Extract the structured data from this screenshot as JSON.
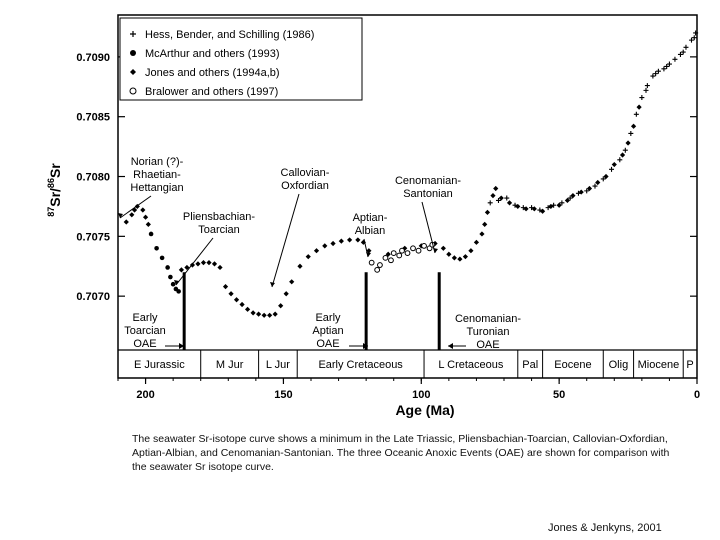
{
  "chart_data": {
    "type": "scatter",
    "title": "",
    "xlabel": "Age (Ma)",
    "ylabel_parts": {
      "exp1": "87",
      "sym1": "Sr/",
      "exp2": "86",
      "sym2": "Sr"
    },
    "xlim": [
      210,
      0
    ],
    "ylim": [
      0.70655,
      0.70935
    ],
    "x_ticks": [
      200,
      150,
      100,
      50,
      0
    ],
    "x_tick_labels": [
      "200",
      "150",
      "100",
      "50",
      "0"
    ],
    "y_ticks": [
      0.707,
      0.7075,
      0.708,
      0.7085,
      0.709
    ],
    "y_tick_labels": [
      "0.7070",
      "0.7075",
      "0.7080",
      "0.7085",
      "0.7090"
    ],
    "legend_position": "top-left",
    "series": [
      {
        "name": "Hess, Bender, and Schilling (1986)",
        "marker": "plus",
        "points": [
          [
            75,
            0.70778
          ],
          [
            72,
            0.7078
          ],
          [
            69,
            0.70782
          ],
          [
            66,
            0.70776
          ],
          [
            63,
            0.70774
          ],
          [
            60,
            0.70774
          ],
          [
            57,
            0.70772
          ],
          [
            54,
            0.70774
          ],
          [
            52,
            0.70776
          ],
          [
            49,
            0.70778
          ],
          [
            46,
            0.70782
          ],
          [
            43,
            0.70786
          ],
          [
            40,
            0.70788
          ],
          [
            37,
            0.70792
          ],
          [
            34,
            0.70798
          ],
          [
            31,
            0.70806
          ],
          [
            28,
            0.70814
          ],
          [
            26,
            0.70822
          ],
          [
            24,
            0.70836
          ],
          [
            22,
            0.70852
          ],
          [
            20,
            0.70866
          ],
          [
            18,
            0.70876
          ],
          [
            16,
            0.70884
          ],
          [
            14,
            0.70888
          ],
          [
            12,
            0.7089
          ],
          [
            10,
            0.70894
          ],
          [
            8,
            0.70898
          ],
          [
            6,
            0.70902
          ],
          [
            4,
            0.70908
          ],
          [
            2,
            0.70914
          ],
          [
            1,
            0.70916
          ],
          [
            0.5,
            0.7092
          ],
          [
            18.5,
            0.70872
          ],
          [
            15,
            0.70886
          ],
          [
            11,
            0.70892
          ],
          [
            5,
            0.70904
          ]
        ]
      },
      {
        "name": "McArthur and others (1993)",
        "marker": "filled-circle",
        "points": [
          [
            198,
            0.70752
          ],
          [
            196,
            0.7074
          ],
          [
            194,
            0.70732
          ],
          [
            192,
            0.70724
          ],
          [
            191,
            0.70716
          ],
          [
            190,
            0.7071
          ],
          [
            189,
            0.70706
          ],
          [
            188,
            0.70704
          ]
        ]
      },
      {
        "name": "Jones and others (1994a,b)",
        "marker": "diamond",
        "points": [
          [
            207,
            0.70762
          ],
          [
            205,
            0.70768
          ],
          [
            204,
            0.70772
          ],
          [
            203,
            0.70775
          ],
          [
            201,
            0.70772
          ],
          [
            200,
            0.70766
          ],
          [
            199,
            0.7076
          ],
          [
            187,
            0.70722
          ],
          [
            185,
            0.70724
          ],
          [
            183,
            0.70726
          ],
          [
            181,
            0.70727
          ],
          [
            179,
            0.70728
          ],
          [
            177,
            0.70728
          ],
          [
            175,
            0.70727
          ],
          [
            173,
            0.70724
          ],
          [
            171,
            0.70708
          ],
          [
            169,
            0.70702
          ],
          [
            167,
            0.70697
          ],
          [
            165,
            0.70693
          ],
          [
            163,
            0.70689
          ],
          [
            161,
            0.70686
          ],
          [
            159,
            0.70685
          ],
          [
            157,
            0.70684
          ],
          [
            155,
            0.70684
          ],
          [
            153,
            0.70685
          ],
          [
            151,
            0.70692
          ],
          [
            149,
            0.70702
          ],
          [
            147,
            0.70712
          ],
          [
            144,
            0.70725
          ],
          [
            141,
            0.70733
          ],
          [
            138,
            0.70738
          ],
          [
            135,
            0.70742
          ],
          [
            132,
            0.70744
          ],
          [
            129,
            0.70746
          ],
          [
            126,
            0.70747
          ],
          [
            123,
            0.70747
          ],
          [
            121,
            0.70745
          ],
          [
            119,
            0.70738
          ],
          [
            112,
            0.70735
          ],
          [
            106,
            0.7074
          ],
          [
            100,
            0.70742
          ],
          [
            95,
            0.70744
          ],
          [
            92,
            0.7074
          ],
          [
            90,
            0.70735
          ],
          [
            88,
            0.70732
          ],
          [
            86,
            0.70731
          ],
          [
            84,
            0.70733
          ],
          [
            82,
            0.70738
          ],
          [
            80,
            0.70745
          ],
          [
            78,
            0.70752
          ],
          [
            77,
            0.7076
          ],
          [
            76,
            0.7077
          ],
          [
            74,
            0.70784
          ],
          [
            73,
            0.7079
          ],
          [
            71,
            0.70782
          ],
          [
            68,
            0.70778
          ],
          [
            65,
            0.70775
          ],
          [
            62,
            0.70773
          ],
          [
            59,
            0.70773
          ],
          [
            56,
            0.70771
          ],
          [
            53,
            0.70775
          ],
          [
            50,
            0.70776
          ],
          [
            47,
            0.7078
          ],
          [
            45,
            0.70784
          ],
          [
            42,
            0.70787
          ],
          [
            39,
            0.7079
          ],
          [
            36,
            0.70795
          ],
          [
            33,
            0.708
          ],
          [
            30,
            0.7081
          ],
          [
            27,
            0.70818
          ],
          [
            25,
            0.70828
          ],
          [
            23,
            0.70842
          ],
          [
            21,
            0.70858
          ]
        ]
      },
      {
        "name": "Bralower and others (1997)",
        "marker": "open-circle",
        "points": [
          [
            118,
            0.70728
          ],
          [
            116,
            0.70722
          ],
          [
            115,
            0.70726
          ],
          [
            113,
            0.70732
          ],
          [
            111,
            0.7073
          ],
          [
            110,
            0.70736
          ],
          [
            108,
            0.70734
          ],
          [
            107,
            0.70738
          ],
          [
            105,
            0.70736
          ],
          [
            103,
            0.7074
          ],
          [
            101,
            0.70738
          ],
          [
            99,
            0.70742
          ],
          [
            97,
            0.7074
          ],
          [
            96,
            0.70743
          ]
        ]
      }
    ],
    "oae_markers": [
      {
        "name": "Early Toarcian OAE",
        "age": 186
      },
      {
        "name": "Early Aptian OAE",
        "age": 120
      },
      {
        "name": "Cenomanian-Turonian OAE",
        "age": 93.5
      }
    ],
    "annotations": [
      {
        "lines": [
          "Norian (?)-",
          "Rhaetian-",
          "Hettangian"
        ],
        "age": 208,
        "value": 0.708
      },
      {
        "lines": [
          "Pliensbachian-",
          "Toarcian"
        ],
        "age": 189,
        "value": 0.70728
      },
      {
        "lines": [
          "Callovian-",
          "Oxfordian"
        ],
        "age": 152,
        "value": 0.7071
      },
      {
        "lines": [
          "Aptian-",
          "Albian"
        ],
        "age": 117,
        "value": 0.70748
      },
      {
        "lines": [
          "Cenomanian-",
          "Santonian"
        ],
        "age": 92,
        "value": 0.70755
      },
      {
        "lines": [
          "Early",
          "Toarcian",
          "OAE"
        ]
      },
      {
        "lines": [
          "Early",
          "Aptian",
          "OAE"
        ]
      },
      {
        "lines": [
          "Cenomanian-",
          "Turonian",
          "OAE"
        ]
      }
    ],
    "time_periods": [
      {
        "label": "E Jurassic",
        "from": 210,
        "to": 180
      },
      {
        "label": "M Jur",
        "from": 180,
        "to": 159
      },
      {
        "label": "L Jur",
        "from": 159,
        "to": 145
      },
      {
        "label": "Early Cretaceous",
        "from": 145,
        "to": 99
      },
      {
        "label": "L Cretaceous",
        "from": 99,
        "to": 65
      },
      {
        "label": "Pal",
        "from": 65,
        "to": 56
      },
      {
        "label": "Eocene",
        "from": 56,
        "to": 34
      },
      {
        "label": "Olig",
        "from": 34,
        "to": 23
      },
      {
        "label": "Miocene",
        "from": 23,
        "to": 5
      },
      {
        "label": "P",
        "from": 5,
        "to": 0
      }
    ]
  },
  "caption": "The seawater Sr-isotope curve shows a minimum in the Late Triassic, Pliensbachian-Toarcian, Callovian-Oxfordian, Aptian-Albian, and Cenomanian-Santonian. The three Oceanic Anoxic Events (OAE) are shown for comparison with the seawater Sr isotope curve.",
  "credit": "Jones & Jenkyns, 2001"
}
